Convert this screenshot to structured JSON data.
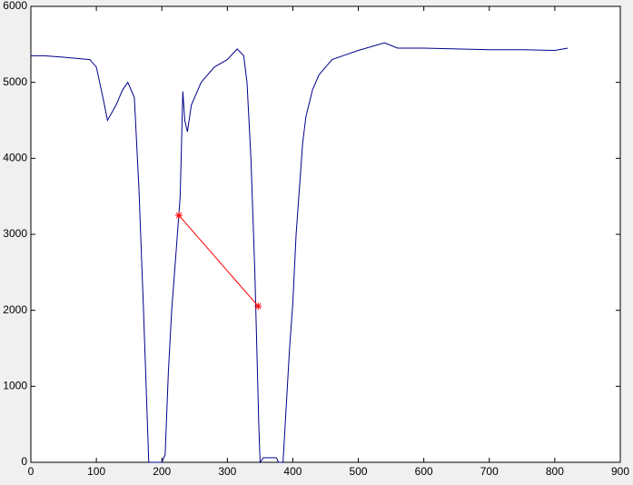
{
  "chart_data": {
    "type": "line",
    "xlim": [
      0,
      900
    ],
    "xticks": [
      0,
      100,
      200,
      300,
      400,
      500,
      600,
      700,
      800,
      900
    ],
    "ylim": [
      0,
      6000
    ],
    "yticks": [
      0,
      1000,
      2000,
      3000,
      4000,
      5000,
      6000
    ],
    "series": [
      {
        "color": "#00008b",
        "marker": "none",
        "x": [
          0,
          20,
          50,
          90,
          100,
          110,
          117,
          130,
          140,
          148,
          158,
          165,
          172,
          180,
          200,
          205,
          210,
          215,
          222,
          228,
          232,
          235,
          239,
          245,
          260,
          280,
          300,
          315,
          325,
          330,
          336,
          342,
          348,
          350,
          355,
          375,
          378,
          385,
          395,
          400,
          405,
          410,
          415,
          420,
          430,
          440,
          460,
          500,
          540,
          560,
          600,
          650,
          700,
          750,
          800,
          820
        ],
        "values": [
          5350,
          5350,
          5330,
          5300,
          5200,
          4800,
          4500,
          4700,
          4900,
          5000,
          4800,
          3600,
          2000,
          0,
          0,
          100,
          1200,
          2000,
          2800,
          3500,
          4880,
          4500,
          4350,
          4700,
          5000,
          5200,
          5300,
          5440,
          5350,
          5000,
          4000,
          2500,
          500,
          0,
          60,
          60,
          0,
          0,
          1500,
          2100,
          3000,
          3600,
          4200,
          4550,
          4900,
          5100,
          5300,
          5420,
          5520,
          5450,
          5450,
          5440,
          5430,
          5430,
          5420,
          5450
        ]
      },
      {
        "color": "#ff0000",
        "marker": "star",
        "x": [
          226,
          347
        ],
        "values": [
          3250,
          2055
        ]
      }
    ]
  }
}
